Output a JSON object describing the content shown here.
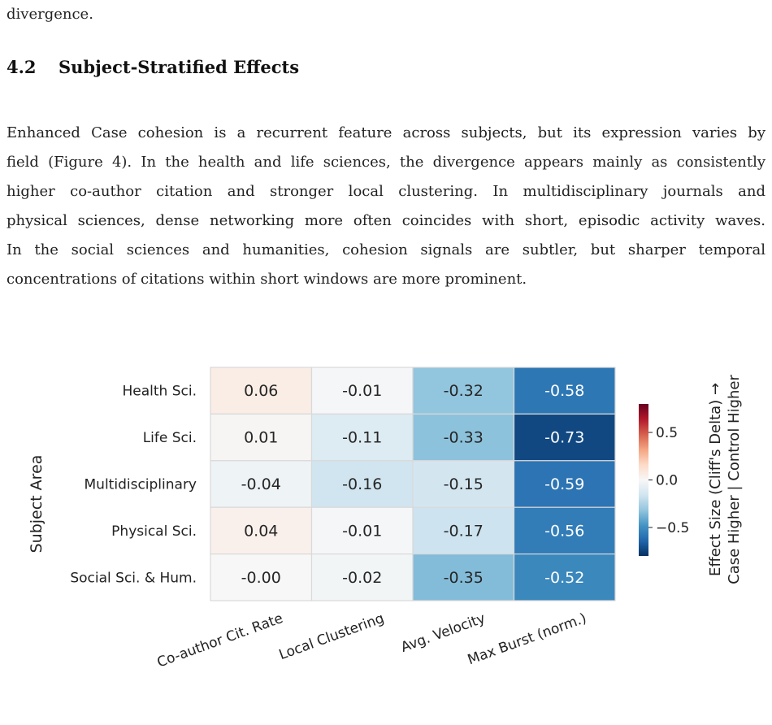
{
  "prev_paragraph_tail": "divergence.",
  "section": {
    "number": "4.2",
    "title": "Subject-Stratified Effects"
  },
  "paragraph_lines": [
    "Enhanced Case cohesion is a recurrent feature across subjects, but its expression varies by",
    "field (Figure 4). In the health and life sciences, the divergence appears mainly as consistently",
    "higher co-author citation and stronger local clustering. In multidisciplinary journals and",
    "physical sciences, dense networking more often coincides with short, episodic activity waves.",
    "In the social sciences and humanities, cohesion signals are subtler, but sharper temporal",
    "concentrations of citations within short windows are more prominent."
  ],
  "chart_data": {
    "type": "heatmap",
    "ylabel": "Subject Area",
    "xlabel": "",
    "rows": [
      "Health Sci.",
      "Life Sci.",
      "Multidisciplinary",
      "Physical Sci.",
      "Social Sci. & Hum."
    ],
    "columns": [
      "Co-author Cit. Rate",
      "Local Clustering",
      "Avg. Velocity",
      "Max Burst (norm.)"
    ],
    "values": [
      [
        0.06,
        -0.01,
        -0.32,
        -0.58
      ],
      [
        0.01,
        -0.11,
        -0.33,
        -0.73
      ],
      [
        -0.04,
        -0.16,
        -0.15,
        -0.59
      ],
      [
        0.04,
        -0.01,
        -0.17,
        -0.56
      ],
      [
        -0.0,
        -0.02,
        -0.35,
        -0.52
      ]
    ],
    "cell_labels": [
      [
        "0.06",
        "-0.01",
        "-0.32",
        "-0.58"
      ],
      [
        "0.01",
        "-0.11",
        "-0.33",
        "-0.73"
      ],
      [
        "-0.04",
        "-0.16",
        "-0.15",
        "-0.59"
      ],
      [
        "0.04",
        "-0.01",
        "-0.17",
        "-0.56"
      ],
      [
        "-0.00",
        "-0.02",
        "-0.35",
        "-0.52"
      ]
    ],
    "colorbar": {
      "vmin": -0.8,
      "vmax": 0.8,
      "colormap": "RdBu_r",
      "ticks": [
        0.5,
        0.0,
        -0.5
      ],
      "tick_labels": [
        "0.5",
        "0.0",
        "−0.5"
      ],
      "label_line1": "Effect Size (Cliff's Delta) →",
      "label_line2": "Case Higher | Control Higher"
    }
  }
}
